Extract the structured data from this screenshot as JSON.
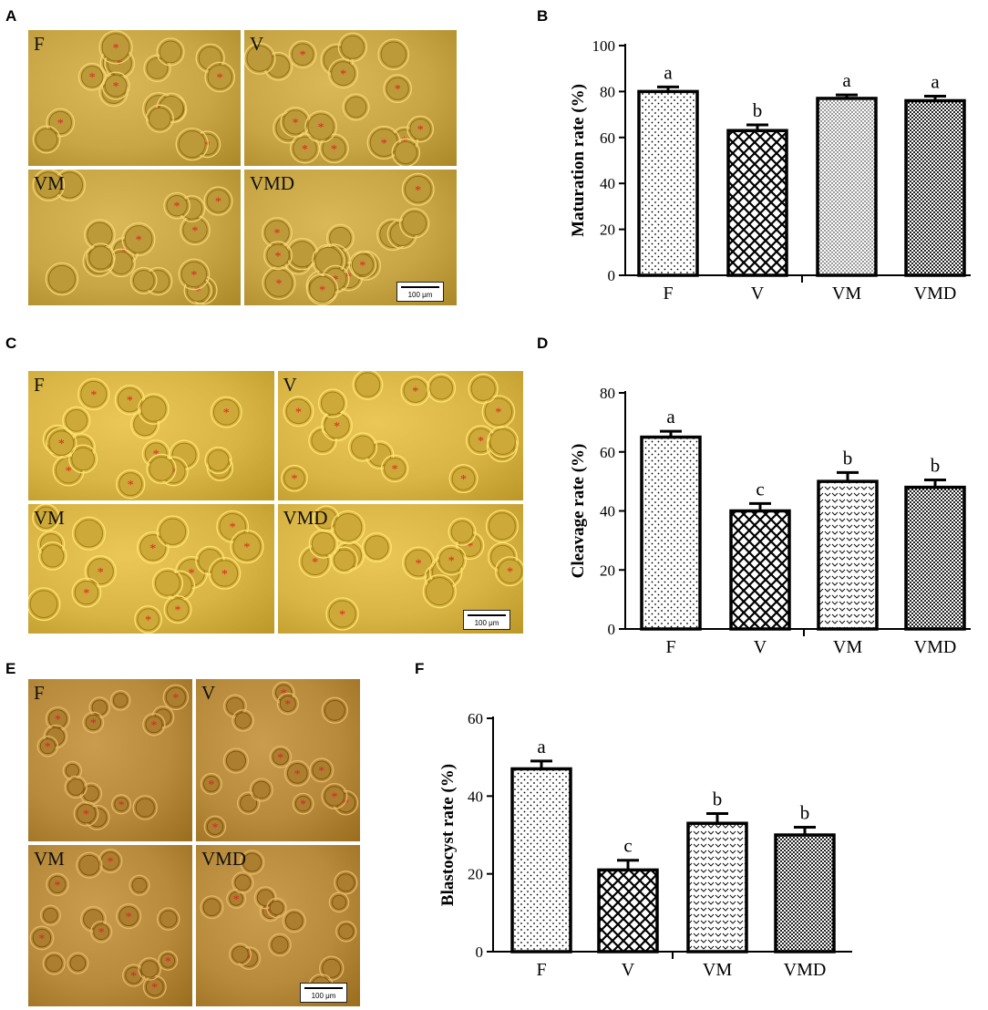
{
  "panels": {
    "A": "A",
    "B": "B",
    "C": "C",
    "D": "D",
    "E": "E",
    "F": "F"
  },
  "micrographs": [
    {
      "id": "A",
      "base": "#c9a645",
      "labels": [
        "F",
        "V",
        "VM",
        "VMD"
      ],
      "scale_bar": "100 μm"
    },
    {
      "id": "C",
      "base": "#d9b545",
      "labels": [
        "F",
        "V",
        "VM",
        "VMD"
      ],
      "scale_bar": "100 μm"
    },
    {
      "id": "E",
      "base": "#b88b3c",
      "labels": [
        "F",
        "V",
        "VM",
        "VMD"
      ],
      "scale_bar": "100 μm"
    }
  ],
  "colors": {
    "marker": "#e32020",
    "axis": "#000000",
    "bar_fill": "#ffffff"
  },
  "chart_data": [
    {
      "type": "bar",
      "panel": "B",
      "ylabel": "Maturation rate (%)",
      "categories": [
        "F",
        "V",
        "VM",
        "VMD"
      ],
      "values": [
        80,
        63,
        77,
        76
      ],
      "errors": [
        2,
        2.5,
        1.5,
        2
      ],
      "letters": [
        "a",
        "b",
        "a",
        "a"
      ],
      "patterns": [
        "dots",
        "crosshatch",
        "finedots",
        "checker"
      ],
      "ylim": [
        0,
        100
      ],
      "yticks": [
        0,
        20,
        40,
        60,
        80,
        100
      ]
    },
    {
      "type": "bar",
      "panel": "D",
      "ylabel": "Cleavage rate (%)",
      "categories": [
        "F",
        "V",
        "VM",
        "VMD"
      ],
      "values": [
        65,
        40,
        50,
        48
      ],
      "errors": [
        2,
        2.5,
        3,
        2.5
      ],
      "letters": [
        "a",
        "c",
        "b",
        "b"
      ],
      "patterns": [
        "dots",
        "crosshatch",
        "chevrons",
        "checker"
      ],
      "ylim": [
        0,
        80
      ],
      "yticks": [
        0,
        20,
        40,
        60,
        80
      ]
    },
    {
      "type": "bar",
      "panel": "F",
      "ylabel": "Blastocyst rate (%)",
      "categories": [
        "F",
        "V",
        "VM",
        "VMD"
      ],
      "values": [
        47,
        21,
        33,
        30
      ],
      "errors": [
        2,
        2.5,
        2.5,
        2
      ],
      "letters": [
        "a",
        "c",
        "b",
        "b"
      ],
      "patterns": [
        "dots",
        "crosshatch",
        "chevrons",
        "checker"
      ],
      "ylim": [
        0,
        60
      ],
      "yticks": [
        0,
        20,
        40,
        60
      ]
    }
  ]
}
